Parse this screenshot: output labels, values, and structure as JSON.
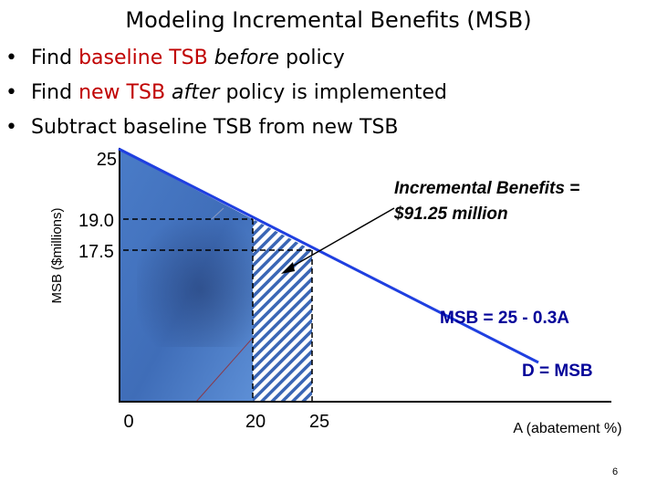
{
  "slide": {
    "title": "Modeling Incremental Benefits (MSB)",
    "page_number": "6"
  },
  "bullets": [
    {
      "parts": [
        {
          "text": "Find ",
          "style": "normal"
        },
        {
          "text": "baseline TSB",
          "style": "red"
        },
        {
          "text": " ",
          "style": "normal"
        },
        {
          "text": "before",
          "style": "italic"
        },
        {
          "text": " policy",
          "style": "normal"
        }
      ]
    },
    {
      "parts": [
        {
          "text": "Find ",
          "style": "normal"
        },
        {
          "text": "new TSB",
          "style": "red"
        },
        {
          "text": " ",
          "style": "normal"
        },
        {
          "text": "after",
          "style": "italic"
        },
        {
          "text": " policy is implemented",
          "style": "normal"
        }
      ]
    },
    {
      "parts": [
        {
          "text": "Subtract baseline TSB from new TSB",
          "style": "normal"
        }
      ]
    }
  ],
  "chart_data": {
    "type": "line",
    "ylabel": "MSB ($millions)",
    "xlabel": "A (abatement %)",
    "y_ticks": [
      "25",
      "19.0",
      "17.5"
    ],
    "x_ticks": [
      "0",
      "20",
      "25"
    ],
    "series": [
      {
        "name": "D = MSB",
        "equation": "MSB = 25 - 0.3A",
        "points": [
          [
            0,
            25
          ],
          [
            20,
            19.0
          ],
          [
            25,
            17.5
          ],
          [
            70,
            4
          ]
        ]
      }
    ],
    "shaded_area": {
      "x_from": 0,
      "x_to": 20,
      "meaning": "baseline TSB"
    },
    "hatched_area": {
      "x_from": 20,
      "x_to": 25,
      "meaning": "incremental benefits"
    },
    "annotations": {
      "incremental_line1": "Incremental Benefits =",
      "incremental_line2": "$91.25 million",
      "equation": "MSB = 25 - 0.3A",
      "demand": "D = MSB"
    },
    "colors": {
      "line": "#1f3fe0",
      "fill": "#3f6fbf",
      "hatch": "#3a66b5"
    }
  }
}
